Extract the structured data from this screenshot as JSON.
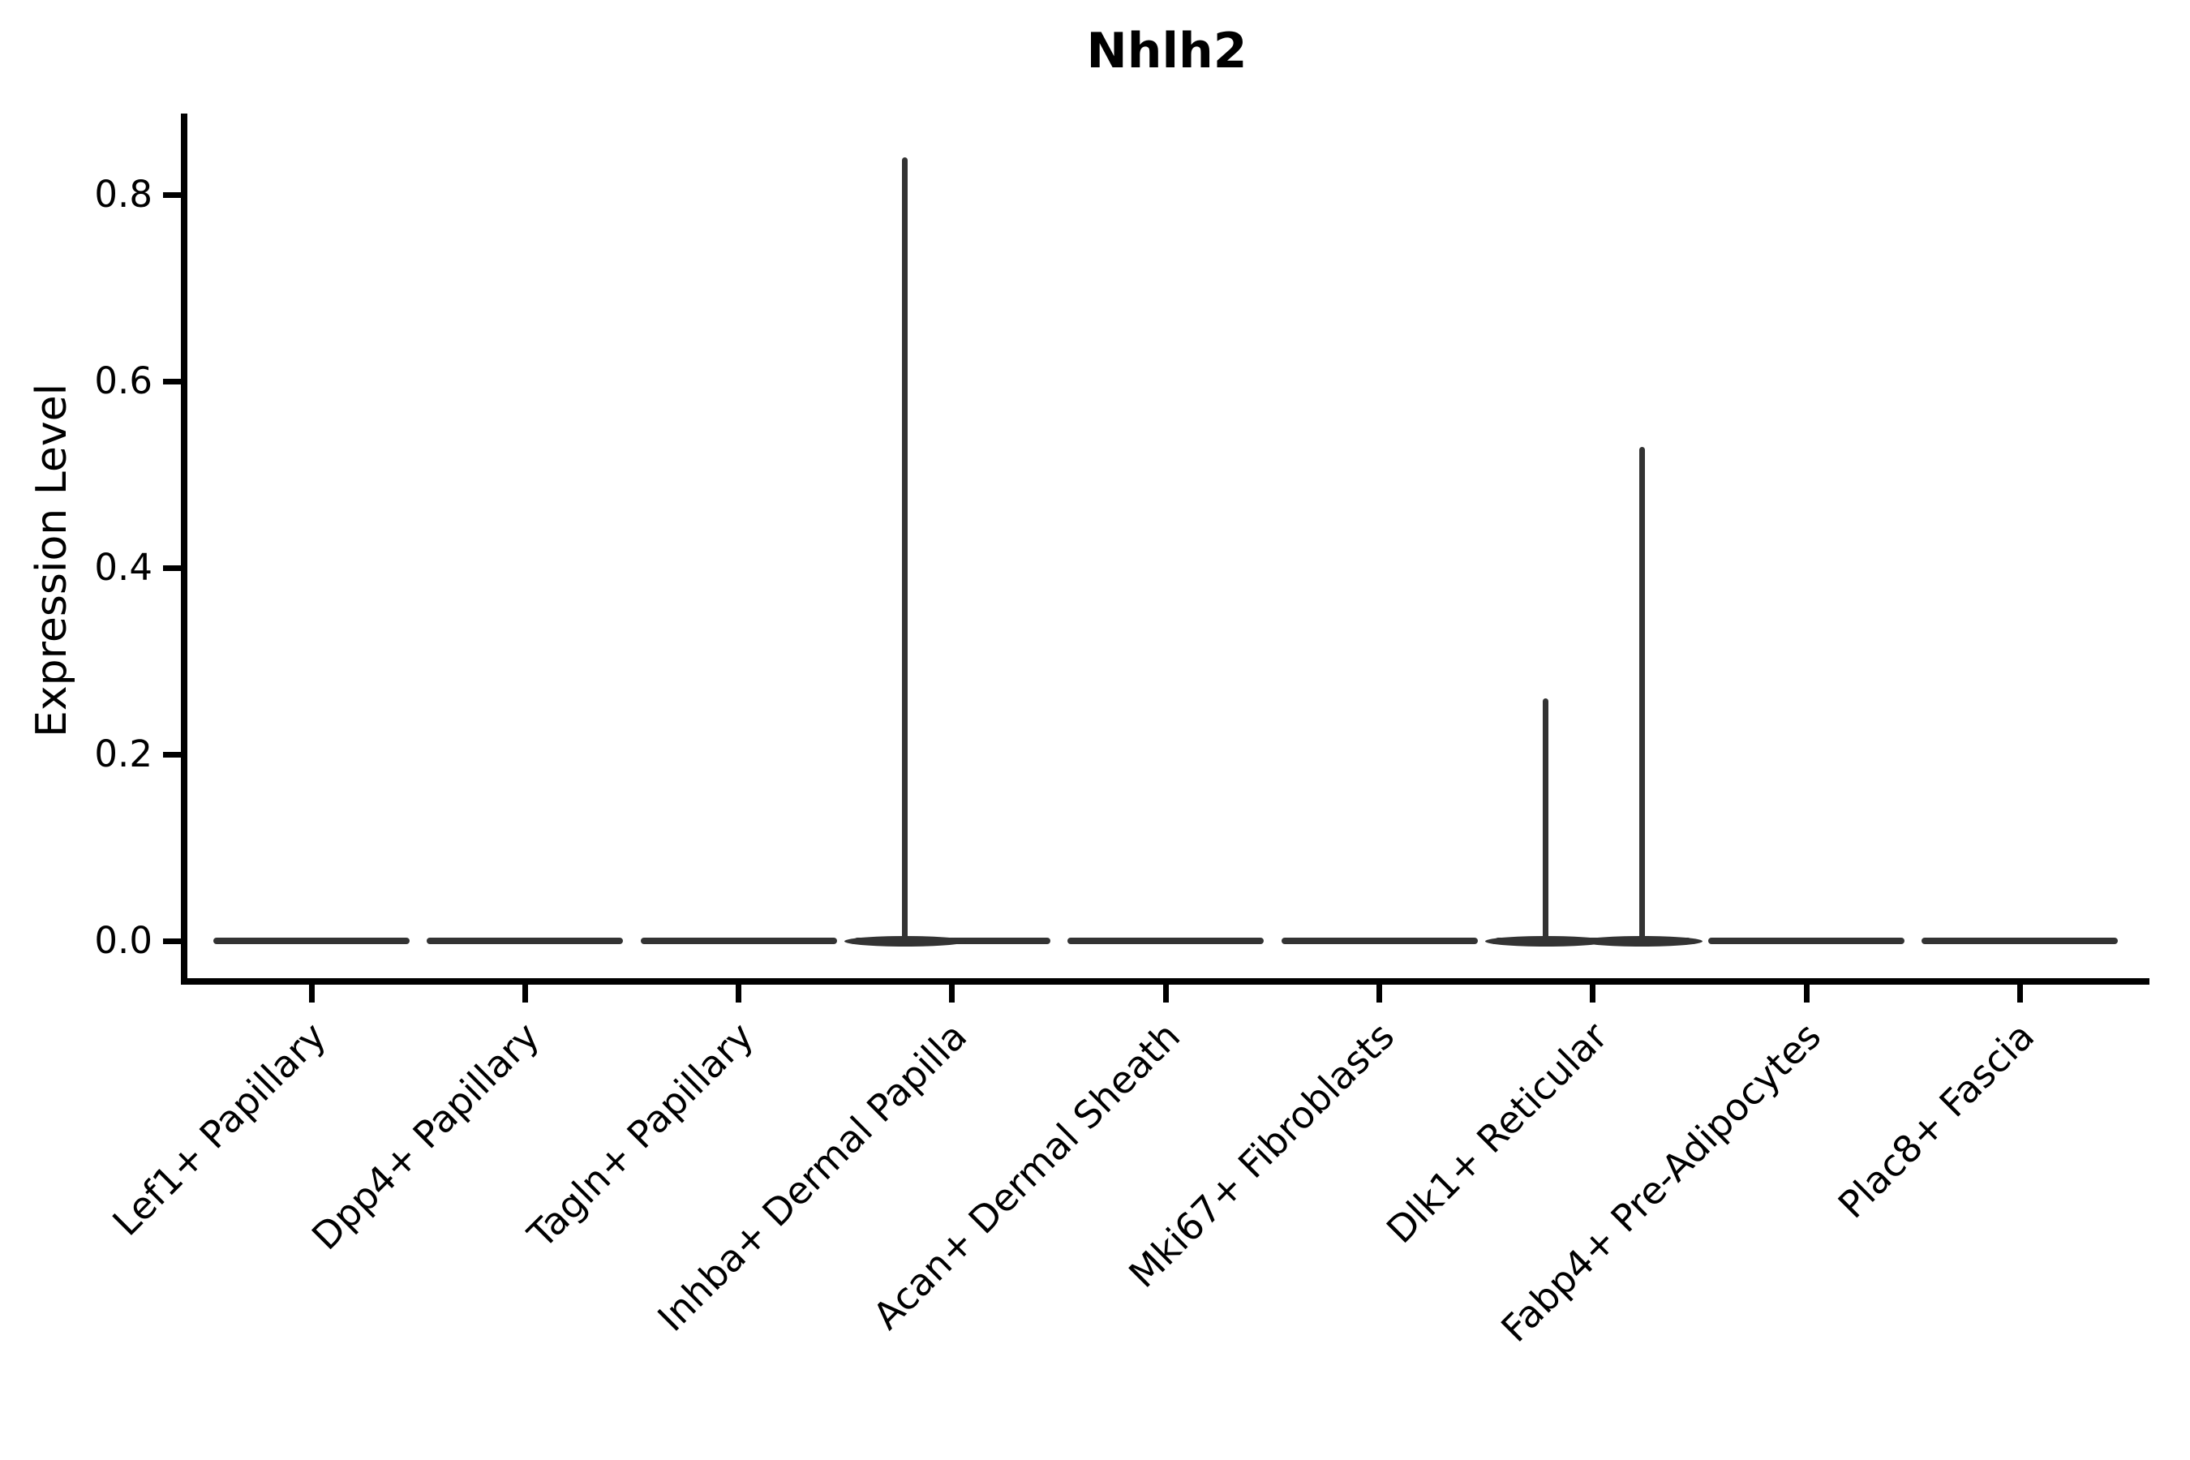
{
  "chart_data": {
    "type": "violin",
    "title": "Nhlh2",
    "ylabel": "Expression Level",
    "xlabel": "",
    "ylim": [
      0,
      0.89
    ],
    "yticks": [
      0.0,
      0.2,
      0.4,
      0.6,
      0.8
    ],
    "grid": false,
    "legend": false,
    "background_color": "#ffffff",
    "colors": {
      "violin_line": "#333333",
      "axis": "#000000",
      "text": "#000000"
    },
    "categories": [
      "Lef1+ Papillary",
      "Dpp4+ Papillary",
      "Tagln+ Papillary",
      "Inhba+ Dermal Papilla",
      "Acan+ Dermal Sheath",
      "Mki67+ Fibroblasts",
      "Dlk1+ Reticular",
      "Fabp4+ Pre-Adipocytes",
      "Plac8+ Fascia"
    ],
    "violins": [
      {
        "category": "Lef1+ Papillary",
        "baseline_value": 0.0,
        "max_expression": 0.0,
        "spikes": []
      },
      {
        "category": "Dpp4+ Papillary",
        "baseline_value": 0.0,
        "max_expression": 0.0,
        "spikes": []
      },
      {
        "category": "Tagln+ Papillary",
        "baseline_value": 0.0,
        "max_expression": 0.0,
        "spikes": []
      },
      {
        "category": "Inhba+ Dermal Papilla",
        "baseline_value": 0.0,
        "max_expression": 0.84,
        "spikes": [
          {
            "x_offset_frac": -0.22,
            "peak": 0.84
          }
        ]
      },
      {
        "category": "Acan+ Dermal Sheath",
        "baseline_value": 0.0,
        "max_expression": 0.0,
        "spikes": []
      },
      {
        "category": "Mki67+ Fibroblasts",
        "baseline_value": 0.0,
        "max_expression": 0.0,
        "spikes": []
      },
      {
        "category": "Dlk1+ Reticular",
        "baseline_value": 0.0,
        "max_expression": 0.53,
        "spikes": [
          {
            "x_offset_frac": -0.22,
            "peak": 0.26
          },
          {
            "x_offset_frac": 0.23,
            "peak": 0.53
          }
        ]
      },
      {
        "category": "Fabp4+ Pre-Adipocytes",
        "baseline_value": 0.0,
        "max_expression": 0.0,
        "spikes": []
      },
      {
        "category": "Plac8+ Fascia",
        "baseline_value": 0.0,
        "max_expression": 0.0,
        "spikes": []
      }
    ]
  }
}
